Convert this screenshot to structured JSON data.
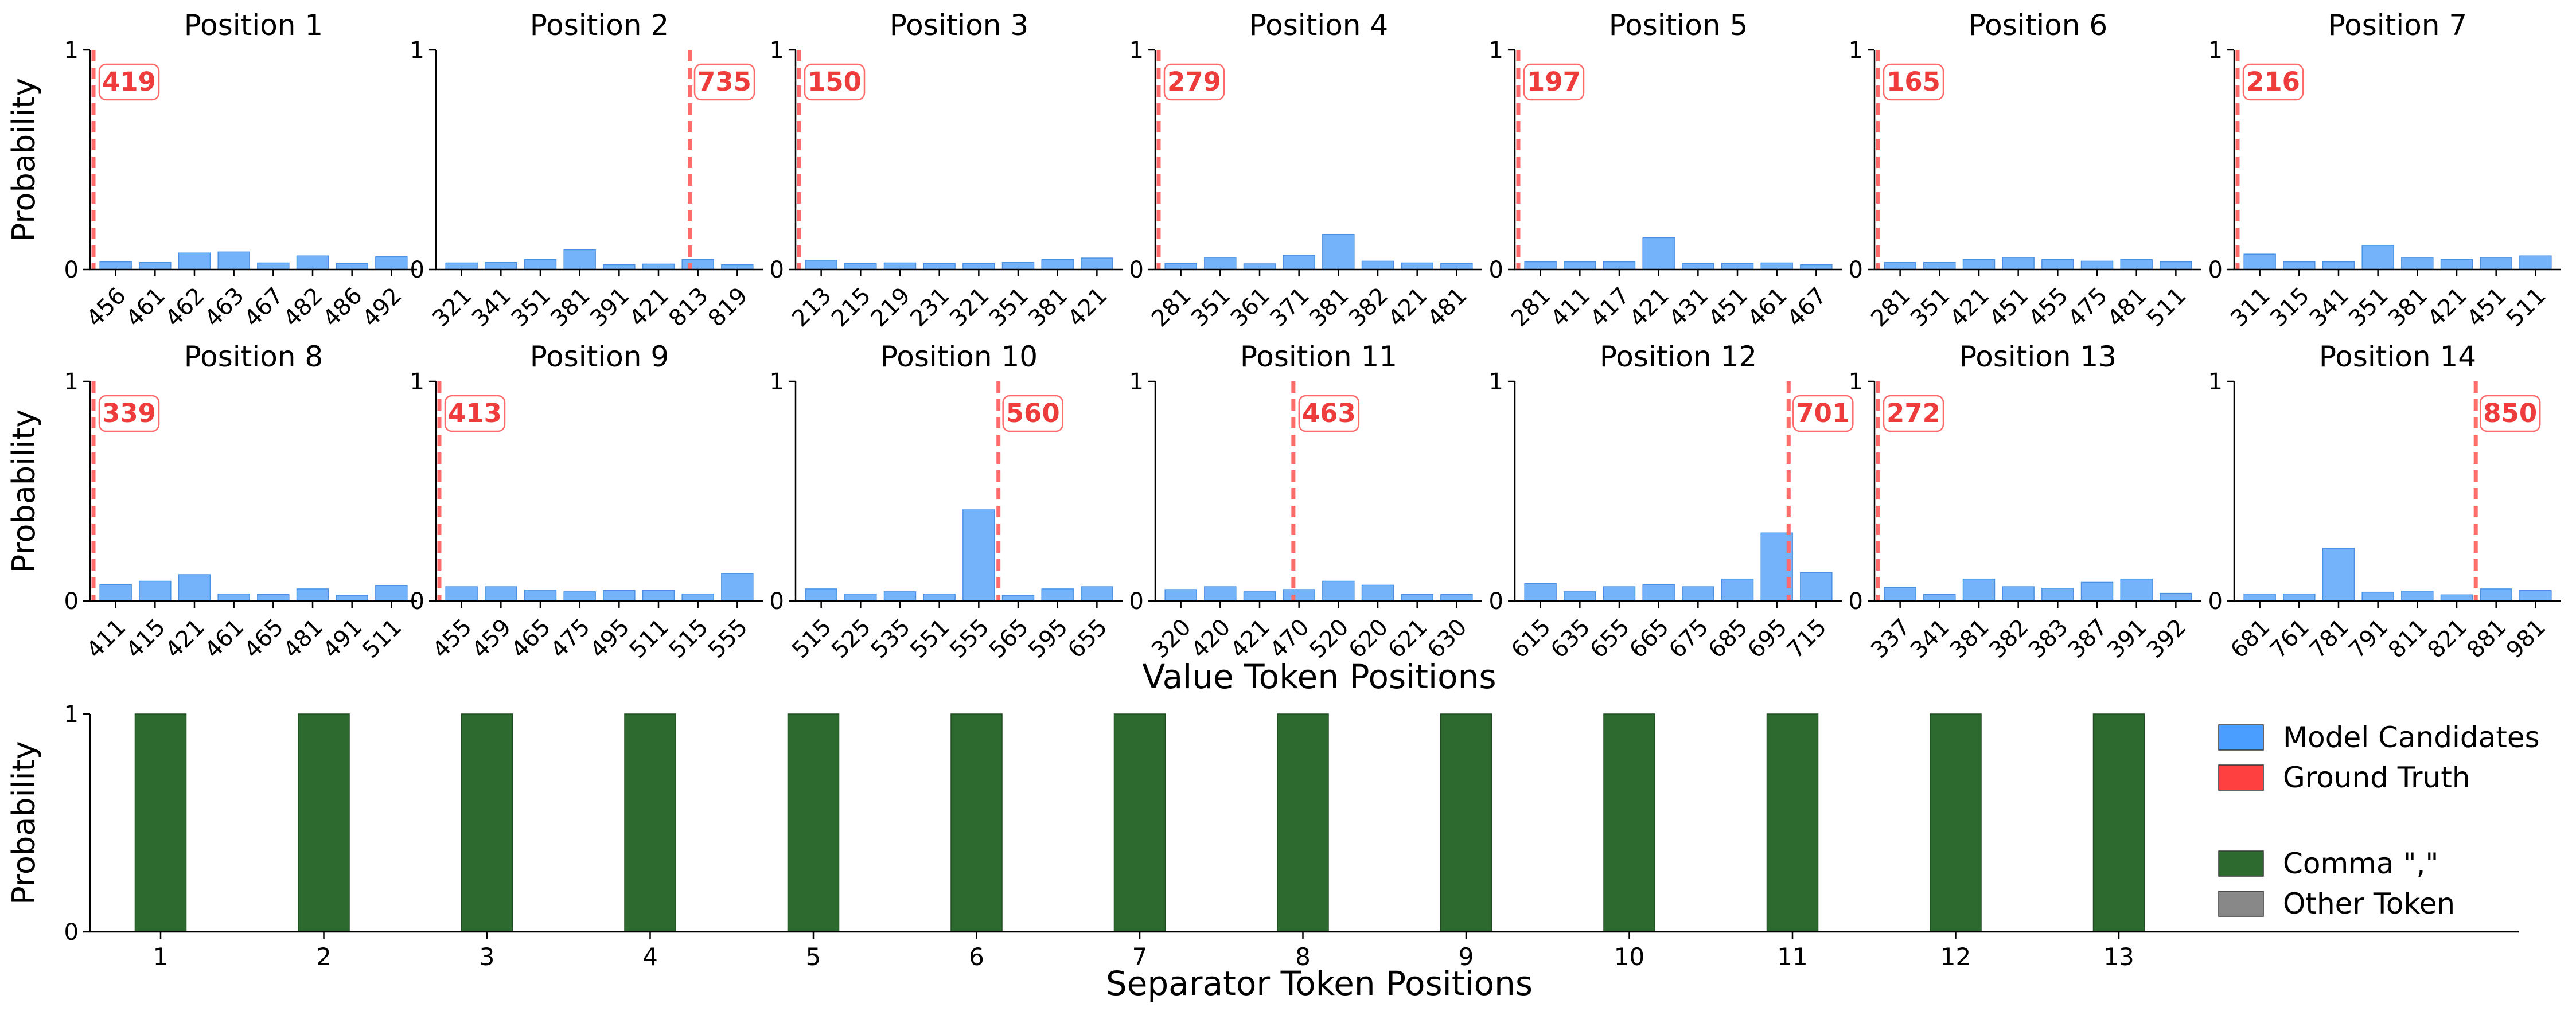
{
  "chart_data": {
    "type": "bar",
    "value_panels": [
      {
        "title": "Position 1",
        "ground_truth": "419",
        "categories": [
          "456",
          "461",
          "462",
          "463",
          "467",
          "482",
          "486",
          "492"
        ],
        "values": [
          0.035,
          0.032,
          0.075,
          0.08,
          0.03,
          0.062,
          0.028,
          0.058
        ],
        "ylim": [
          0,
          1
        ],
        "yticks": [
          "0",
          "1"
        ]
      },
      {
        "title": "Position 2",
        "ground_truth": "735",
        "categories": [
          "321",
          "341",
          "351",
          "381",
          "391",
          "421",
          "813",
          "819"
        ],
        "values": [
          0.03,
          0.032,
          0.045,
          0.09,
          0.022,
          0.025,
          0.045,
          0.022
        ],
        "ylim": [
          0,
          1
        ],
        "yticks": [
          "0",
          "1"
        ]
      },
      {
        "title": "Position 3",
        "ground_truth": "150",
        "categories": [
          "213",
          "215",
          "219",
          "231",
          "321",
          "351",
          "381",
          "421"
        ],
        "values": [
          0.042,
          0.028,
          0.03,
          0.028,
          0.028,
          0.032,
          0.045,
          0.052
        ],
        "ylim": [
          0,
          1
        ],
        "yticks": [
          "0",
          "1"
        ]
      },
      {
        "title": "Position 4",
        "ground_truth": "279",
        "categories": [
          "281",
          "351",
          "361",
          "371",
          "381",
          "382",
          "421",
          "481"
        ],
        "values": [
          0.028,
          0.055,
          0.026,
          0.065,
          0.16,
          0.038,
          0.03,
          0.028
        ],
        "ylim": [
          0,
          1
        ],
        "yticks": [
          "0",
          "1"
        ]
      },
      {
        "title": "Position 5",
        "ground_truth": "197",
        "categories": [
          "281",
          "411",
          "417",
          "421",
          "431",
          "451",
          "461",
          "467"
        ],
        "values": [
          0.035,
          0.035,
          0.035,
          0.145,
          0.028,
          0.028,
          0.03,
          0.022
        ],
        "ylim": [
          0,
          1
        ],
        "yticks": [
          "0",
          "1"
        ]
      },
      {
        "title": "Position 6",
        "ground_truth": "165",
        "categories": [
          "281",
          "351",
          "421",
          "451",
          "455",
          "475",
          "481",
          "511"
        ],
        "values": [
          0.032,
          0.032,
          0.045,
          0.055,
          0.045,
          0.038,
          0.045,
          0.035
        ],
        "ylim": [
          0,
          1
        ],
        "yticks": [
          "0",
          "1"
        ]
      },
      {
        "title": "Position 7",
        "ground_truth": "216",
        "categories": [
          "311",
          "315",
          "341",
          "351",
          "381",
          "421",
          "451",
          "511"
        ],
        "values": [
          0.07,
          0.035,
          0.035,
          0.11,
          0.055,
          0.045,
          0.055,
          0.062
        ],
        "ylim": [
          0,
          1
        ],
        "yticks": [
          "0",
          "1"
        ]
      },
      {
        "title": "Position 8",
        "ground_truth": "339",
        "categories": [
          "411",
          "415",
          "421",
          "461",
          "465",
          "481",
          "491",
          "511"
        ],
        "values": [
          0.075,
          0.09,
          0.12,
          0.032,
          0.03,
          0.055,
          0.026,
          0.07
        ],
        "ylim": [
          0,
          1
        ],
        "yticks": [
          "0",
          "1"
        ]
      },
      {
        "title": "Position 9",
        "ground_truth": "413",
        "categories": [
          "455",
          "459",
          "465",
          "475",
          "495",
          "511",
          "515",
          "555"
        ],
        "values": [
          0.065,
          0.065,
          0.05,
          0.042,
          0.048,
          0.048,
          0.032,
          0.125
        ],
        "ylim": [
          0,
          1
        ],
        "yticks": [
          "0",
          "1"
        ]
      },
      {
        "title": "Position 10",
        "ground_truth": "560",
        "categories": [
          "515",
          "525",
          "535",
          "551",
          "555",
          "565",
          "595",
          "655"
        ],
        "values": [
          0.055,
          0.032,
          0.042,
          0.032,
          0.415,
          0.026,
          0.055,
          0.065
        ],
        "ylim": [
          0,
          1
        ],
        "yticks": [
          "0",
          "1"
        ]
      },
      {
        "title": "Position 11",
        "ground_truth": "463",
        "categories": [
          "320",
          "420",
          "421",
          "470",
          "520",
          "620",
          "621",
          "630"
        ],
        "values": [
          0.052,
          0.065,
          0.042,
          0.052,
          0.09,
          0.072,
          0.03,
          0.03
        ],
        "ylim": [
          0,
          1
        ],
        "yticks": [
          "0",
          "1"
        ]
      },
      {
        "title": "Position 12",
        "ground_truth": "701",
        "categories": [
          "615",
          "635",
          "655",
          "665",
          "675",
          "685",
          "695",
          "715"
        ],
        "values": [
          0.08,
          0.042,
          0.065,
          0.075,
          0.065,
          0.1,
          0.31,
          0.13
        ],
        "ylim": [
          0,
          1
        ],
        "yticks": [
          "0",
          "1"
        ]
      },
      {
        "title": "Position 13",
        "ground_truth": "272",
        "categories": [
          "337",
          "341",
          "381",
          "382",
          "383",
          "387",
          "391",
          "392"
        ],
        "values": [
          0.062,
          0.03,
          0.1,
          0.065,
          0.058,
          0.085,
          0.1,
          0.035
        ],
        "ylim": [
          0,
          1
        ],
        "yticks": [
          "0",
          "1"
        ]
      },
      {
        "title": "Position 14",
        "ground_truth": "850",
        "categories": [
          "681",
          "761",
          "781",
          "791",
          "811",
          "821",
          "881",
          "981"
        ],
        "values": [
          0.032,
          0.032,
          0.24,
          0.04,
          0.045,
          0.028,
          0.055,
          0.048
        ],
        "ylim": [
          0,
          1
        ],
        "yticks": [
          "0",
          "1"
        ]
      }
    ],
    "ylabel": "Probability",
    "value_xlabel": "Value Token Positions",
    "separator_panel": {
      "categories": [
        "1",
        "2",
        "3",
        "4",
        "5",
        "6",
        "7",
        "8",
        "9",
        "10",
        "11",
        "12",
        "13"
      ],
      "values": [
        1,
        1,
        1,
        1,
        1,
        1,
        1,
        1,
        1,
        1,
        1,
        1,
        1
      ],
      "ylim": [
        0,
        1
      ],
      "yticks": [
        "0",
        "1"
      ],
      "xlabel": "Separator Token Positions",
      "ylabel": "Probability"
    },
    "legend": {
      "placement": "right of separator panel",
      "items": [
        {
          "label": "Model Candidates",
          "color": "#4a9eff"
        },
        {
          "label": "Ground Truth",
          "color": "#ff4040"
        },
        {
          "label": "Comma \",\"",
          "color": "#2d6a2f"
        },
        {
          "label": "Other Token",
          "color": "#888888"
        }
      ]
    }
  },
  "colors": {
    "candidate_fill": "#74b3fa",
    "candidate_edge": "#4a90e2",
    "ground_truth": "#ff6b6b",
    "ground_truth_text": "#ee3b3b",
    "comma_bar": "#2d6a2f",
    "axis": "#000000"
  }
}
